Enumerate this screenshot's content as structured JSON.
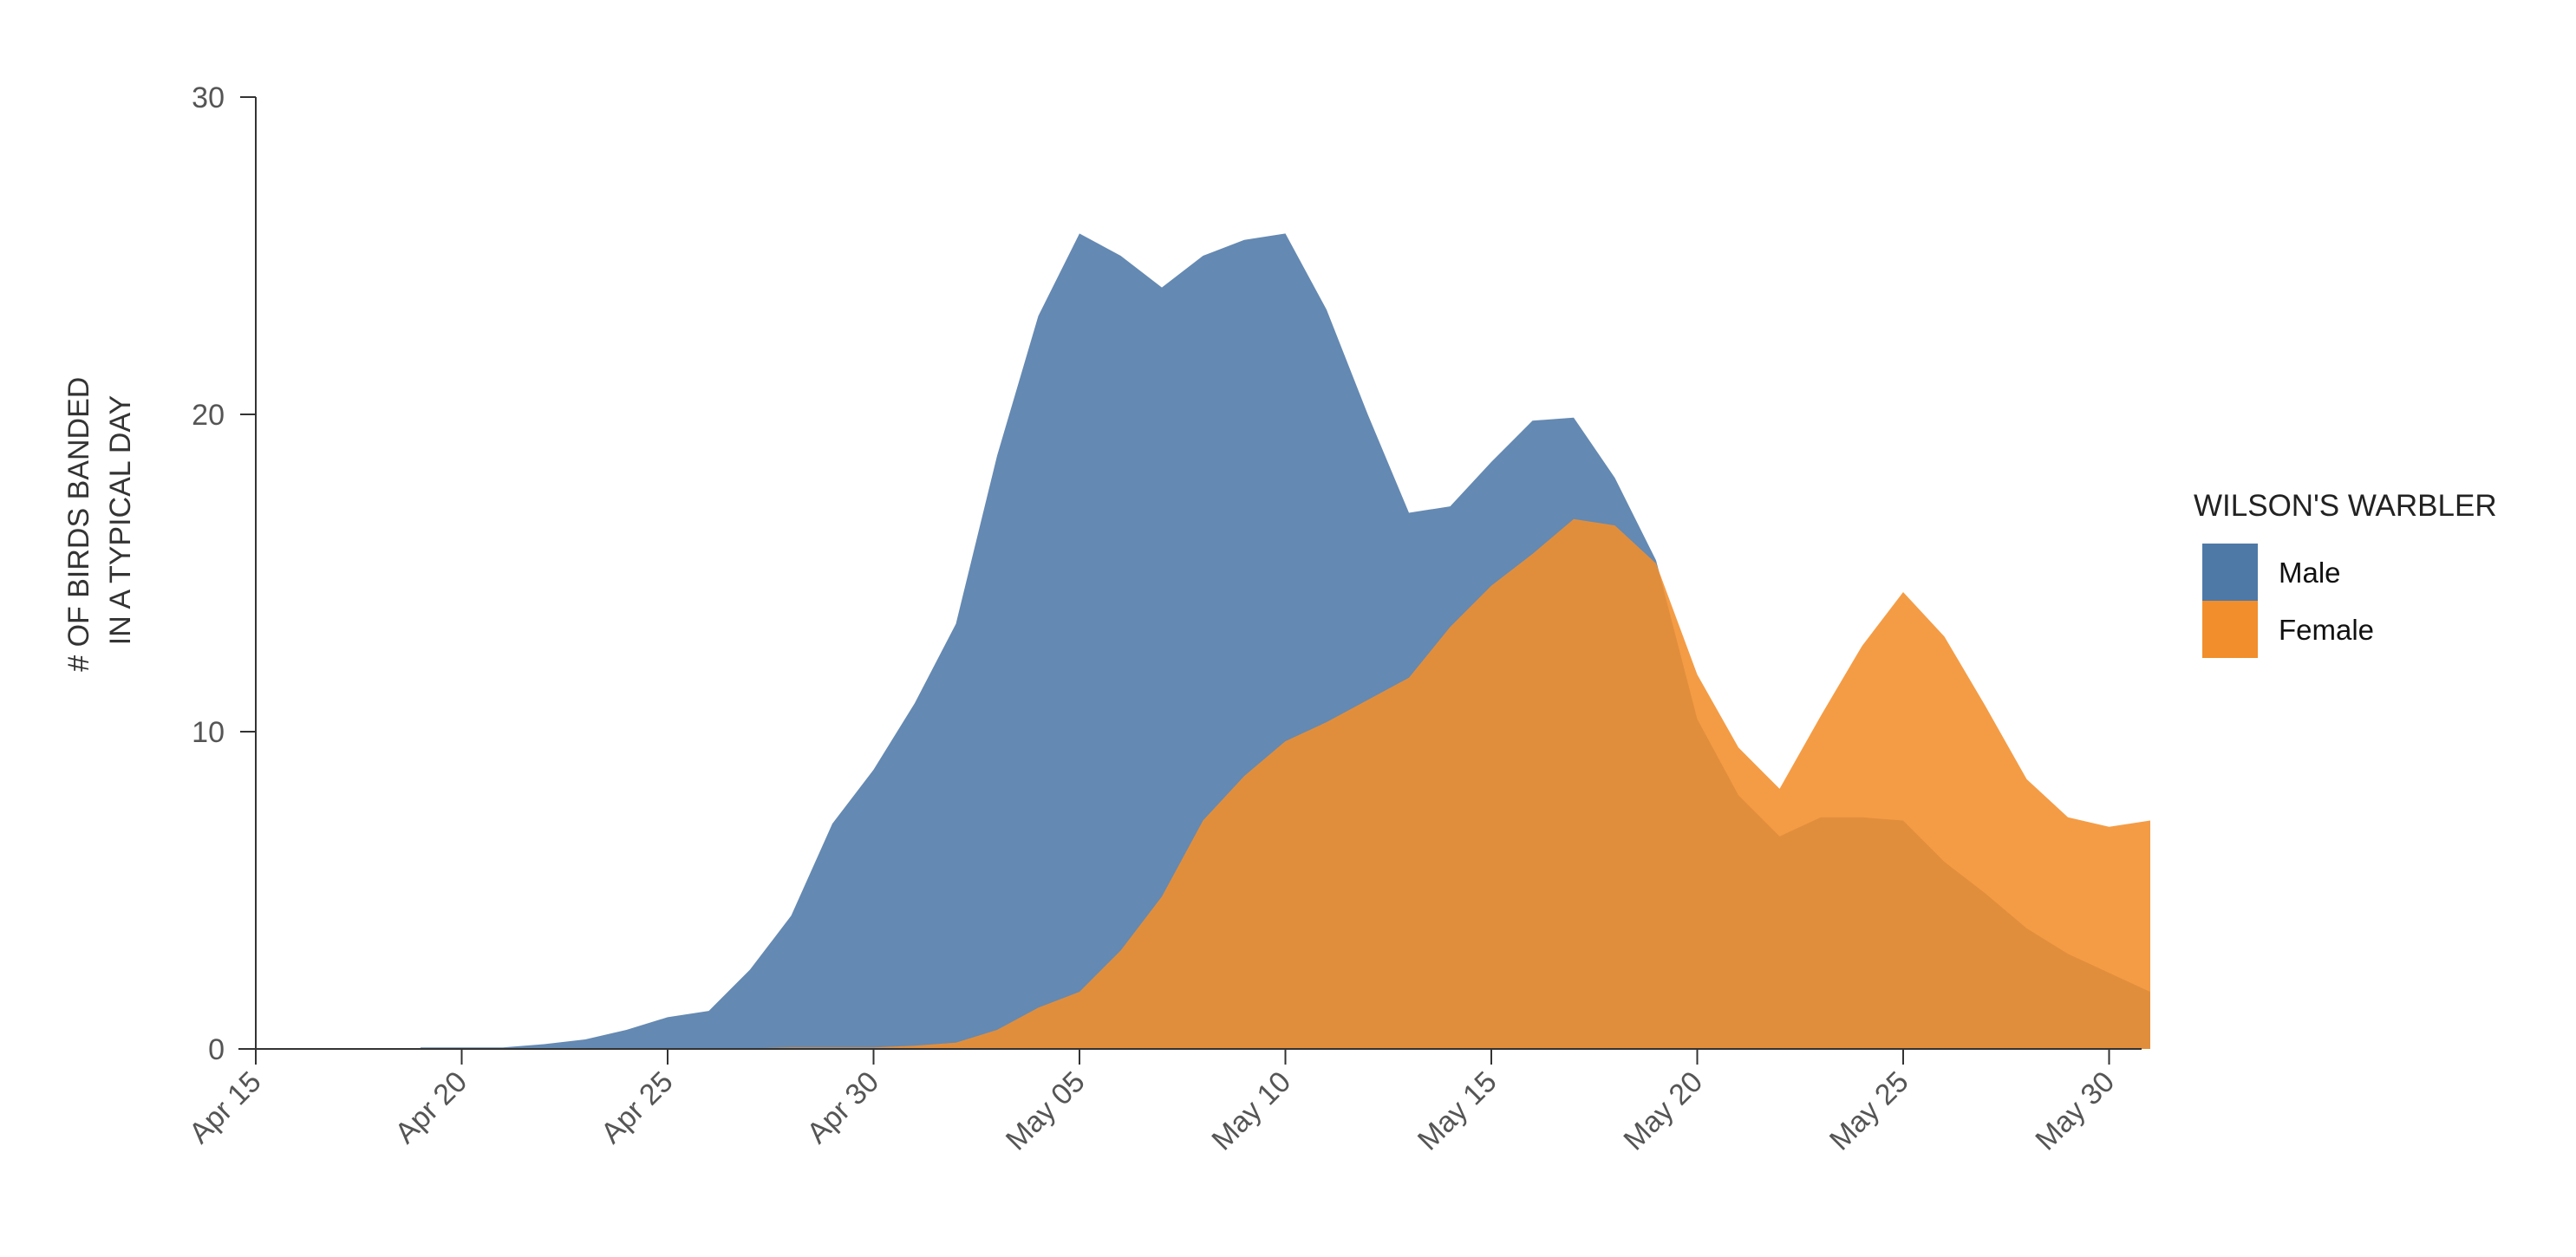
{
  "chart_data": {
    "type": "area",
    "title": "",
    "xlabel": "",
    "ylabel_lines": [
      "# OF BIRDS BANDED",
      "IN A TYPICAL DAY"
    ],
    "ylim": [
      0,
      30
    ],
    "yticks": [
      0,
      10,
      20,
      30
    ],
    "xticks": [
      "Apr 15",
      "Apr 20",
      "Apr 25",
      "Apr 30",
      "May 05",
      "May 10",
      "May 15",
      "May 20",
      "May 25",
      "May 30"
    ],
    "x": [
      "Apr 19",
      "Apr 20",
      "Apr 21",
      "Apr 22",
      "Apr 23",
      "Apr 24",
      "Apr 25",
      "Apr 26",
      "Apr 27",
      "Apr 28",
      "Apr 29",
      "Apr 30",
      "May 01",
      "May 02",
      "May 03",
      "May 04",
      "May 05",
      "May 06",
      "May 07",
      "May 08",
      "May 09",
      "May 10",
      "May 11",
      "May 12",
      "May 13",
      "May 14",
      "May 15",
      "May 16",
      "May 17",
      "May 18",
      "May 19",
      "May 20",
      "May 21",
      "May 22",
      "May 23",
      "May 24",
      "May 25",
      "May 26",
      "May 27",
      "May 28",
      "May 29",
      "May 30",
      "May 31"
    ],
    "legend_title": "WILSON'S WARBLER",
    "legend_position": "right",
    "grid": false,
    "series": [
      {
        "name": "Male",
        "color": "#4e79a7",
        "values": [
          0.05,
          0.05,
          0.05,
          0.15,
          0.3,
          0.6,
          1.0,
          1.2,
          2.5,
          4.2,
          7.1,
          8.8,
          10.9,
          13.4,
          18.7,
          23.1,
          25.7,
          25.0,
          24.0,
          25.0,
          25.5,
          25.7,
          23.3,
          20.0,
          16.9,
          17.1,
          18.5,
          19.8,
          19.9,
          18.0,
          15.4,
          10.4,
          8.0,
          6.7,
          7.3,
          7.3,
          7.2,
          5.9,
          4.9,
          3.8,
          3.0,
          2.4,
          1.8
        ]
      },
      {
        "name": "Female",
        "color": "#f28e2b",
        "values": [
          0,
          0,
          0,
          0,
          0,
          0,
          0,
          0,
          0.02,
          0.05,
          0.05,
          0.05,
          0.1,
          0.2,
          0.6,
          1.3,
          1.8,
          3.1,
          4.8,
          7.2,
          8.6,
          9.7,
          10.3,
          11.0,
          11.7,
          13.3,
          14.6,
          15.6,
          16.7,
          16.5,
          15.3,
          11.8,
          9.5,
          8.2,
          10.5,
          12.7,
          14.4,
          13.0,
          10.8,
          8.5,
          7.3,
          7.0,
          7.2
        ]
      }
    ]
  }
}
